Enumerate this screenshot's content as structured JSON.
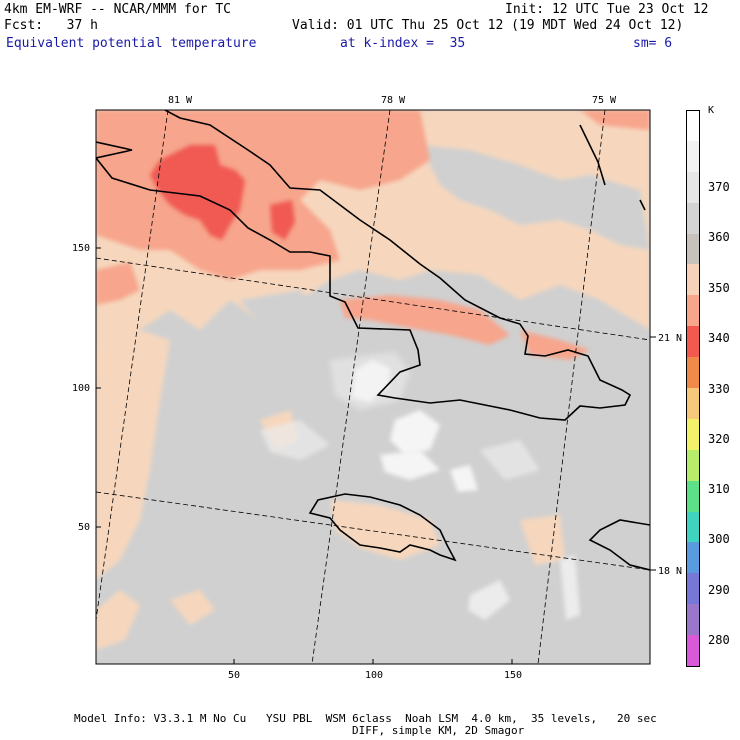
{
  "header": {
    "model": "4km EM-WRF -- NCAR/MMM for TC",
    "init": "Init: 12 UTC Tue 23 Oct 12",
    "fcst": "Fcst:   37 h",
    "valid": "Valid: 01 UTC Thu 25 Oct 12 (19 MDT Wed 24 Oct 12)",
    "field": "Equivalent potential temperature",
    "level": "at k-index =  35",
    "smooth": "sm= 6"
  },
  "axes": {
    "top_lon": [
      "81 W",
      "78 W",
      "75 W"
    ],
    "right_lat": [
      "21 N",
      "18 N"
    ],
    "left_ticks": [
      "150",
      "100",
      "50"
    ],
    "bottom_ticks": [
      "50",
      "100",
      "150"
    ]
  },
  "colorbar": {
    "unit": "K",
    "labels": [
      "370",
      "360",
      "350",
      "340",
      "330",
      "320",
      "310",
      "300",
      "290",
      "280"
    ],
    "colors": [
      "#ffffff",
      "#f2f2f2",
      "#e6e6e6",
      "#d3d3d3",
      "#c8c2bc",
      "#f5d2b8",
      "#f7a68b",
      "#f25a50",
      "#f08a4b",
      "#f6c97a",
      "#f3f06a",
      "#b8ec6b",
      "#5de088",
      "#3fd3c0",
      "#5a9be0",
      "#7777d8",
      "#9b77cc",
      "#d85ad8"
    ]
  },
  "footer": {
    "line1": "Model Info: V3.3.1 M No Cu   YSU PBL  WSM 6class  Noah LSM  4.0 km,  35 levels,   20 sec",
    "line2": "DIFF, simple KM, 2D Smagor"
  },
  "field_colors": {
    "gray": "#d0d0d0",
    "tan": "#f6d7bd",
    "salmon": "#f7a58c",
    "red": "#f05a52",
    "white": "#ffffff",
    "light": "#ececec"
  }
}
